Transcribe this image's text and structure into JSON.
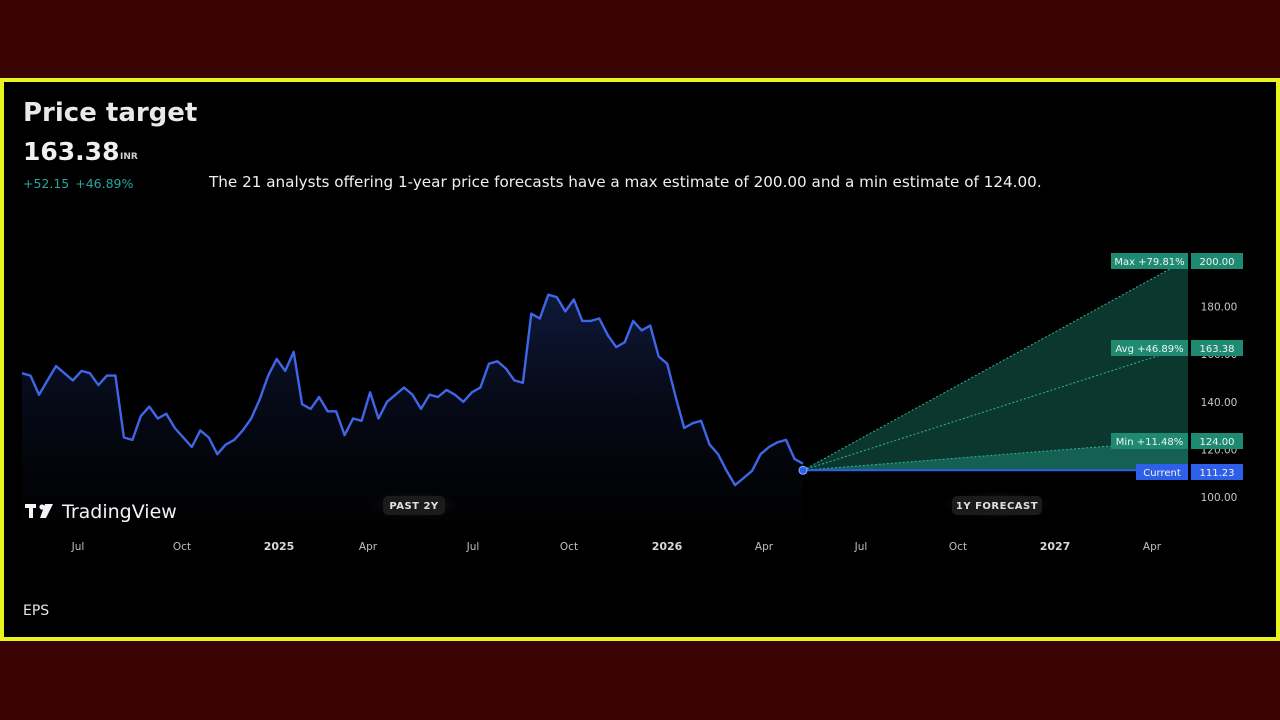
{
  "header": {
    "title": "Price target",
    "price": "163.38",
    "currency": "INR",
    "change": "+52.15  +46.89%",
    "description": "The 21 analysts offering 1-year price forecasts have a max estimate of 200.00 and a min estimate of 124.00."
  },
  "logo": {
    "text": "TradingView",
    "icon": "tradingview-logo-icon"
  },
  "labels": {
    "past": "PAST 2Y",
    "forecast": "1Y FORECAST"
  },
  "footer": {
    "eps": "EPS"
  },
  "colors": {
    "line": "#3f66e6",
    "accent": "#26a69a",
    "forecast_fill": "#0b4d3e",
    "current": "#2e5fe8",
    "badge": "#1f8a72"
  },
  "chart_data": {
    "type": "line",
    "x_ticks": [
      "Jul",
      "Oct",
      "2025",
      "Apr",
      "Jul",
      "Oct",
      "2026",
      "Apr",
      "Jul",
      "Oct",
      "2027",
      "Apr"
    ],
    "y_ticks": [
      "100.00",
      "120.00",
      "140.00",
      "160.00",
      "180.00"
    ],
    "ylim": [
      100,
      200
    ],
    "series": [
      {
        "values": [
          152,
          151,
          143,
          149,
          155,
          152,
          149,
          153,
          152,
          147,
          151,
          151,
          125,
          124,
          134,
          138,
          133,
          135,
          129,
          125,
          121,
          128,
          125,
          118,
          122,
          124,
          128,
          133,
          141,
          151,
          158,
          153,
          161,
          139,
          137,
          142,
          136,
          136,
          126,
          133,
          132,
          144,
          133,
          140,
          143,
          146,
          143,
          137,
          143,
          142,
          145,
          143,
          140,
          144,
          146,
          156,
          157,
          154,
          149,
          148,
          177,
          175,
          185,
          184,
          178,
          183,
          174,
          174,
          175,
          168,
          163,
          165,
          174,
          170,
          172,
          159,
          156,
          142,
          129,
          131,
          132,
          122,
          118,
          111,
          105,
          108,
          111,
          118,
          121,
          123,
          124,
          116,
          114
        ]
      }
    ],
    "forecast": {
      "current": {
        "label": "Current",
        "value": "111.23"
      },
      "max": {
        "label": "Max +79.81%",
        "value": "200.00"
      },
      "avg": {
        "label": "Avg +46.89%",
        "value": "163.38"
      },
      "min": {
        "label": "Min +11.48%",
        "value": "124.00"
      }
    }
  }
}
